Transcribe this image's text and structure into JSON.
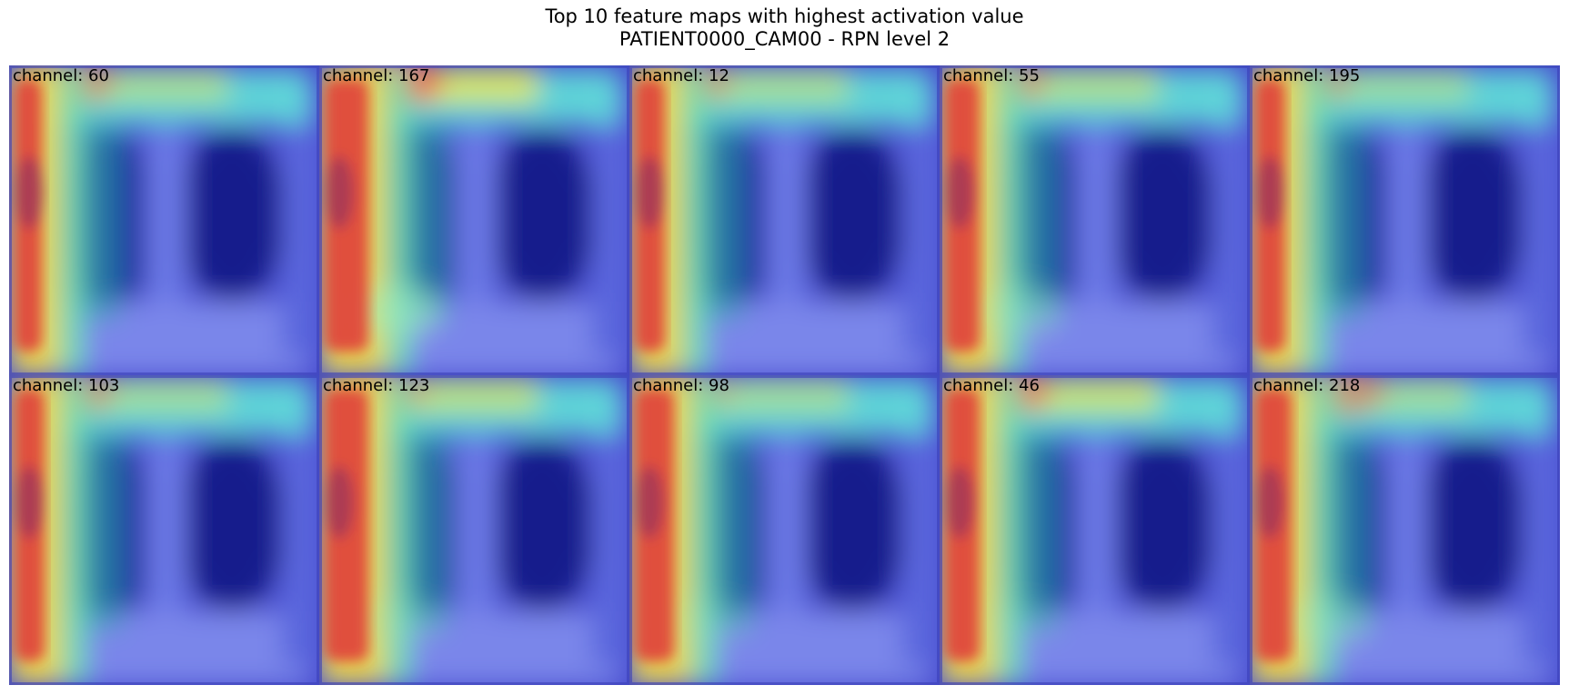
{
  "title": {
    "line1": "Top 10 feature maps with highest activation value",
    "line2": "PATIENT0000_CAM00 - RPN level 2"
  },
  "panels": [
    {
      "label": "channel: 60"
    },
    {
      "label": "channel: 167"
    },
    {
      "label": "channel: 12"
    },
    {
      "label": "channel: 55"
    },
    {
      "label": "channel: 195"
    },
    {
      "label": "channel: 103"
    },
    {
      "label": "channel: 123"
    },
    {
      "label": "channel: 98"
    },
    {
      "label": "channel: 46"
    },
    {
      "label": "channel: 218"
    }
  ]
}
